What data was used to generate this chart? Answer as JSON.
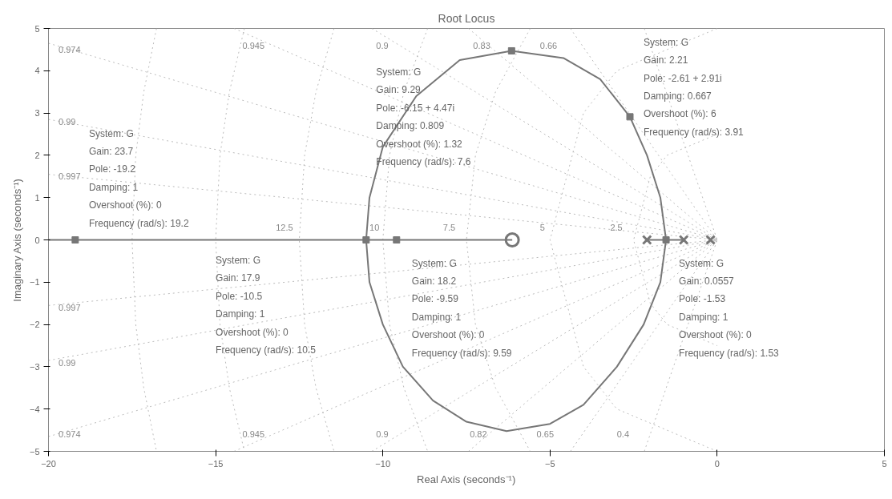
{
  "chart_data": {
    "type": "line",
    "title": "Root Locus",
    "xlabel": "Real Axis (seconds⁻¹)",
    "ylabel": "Imaginary Axis (seconds⁻¹)",
    "xlim": [
      -20,
      5
    ],
    "ylim": [
      -5,
      5
    ],
    "xticks": [
      -20,
      -15,
      -10,
      -5,
      0,
      5
    ],
    "yticks": [
      -5,
      -4,
      -3,
      -2,
      -1,
      0,
      1,
      2,
      3,
      4,
      5
    ],
    "grid": false,
    "series": [
      {
        "type": "line",
        "color": "#bbbbbb",
        "line_style": "dotted",
        "x": [
          -20,
          0
        ],
        "values": [
          4.65,
          0
        ]
      },
      {
        "type": "line",
        "color": "#bbbbbb",
        "line_style": "dotted",
        "x": [
          -20,
          0
        ],
        "values": [
          -4.65,
          0
        ]
      },
      {
        "type": "line",
        "color": "#bbbbbb",
        "line_style": "dotted",
        "x": [
          -14.45,
          0
        ],
        "values": [
          5,
          0
        ]
      },
      {
        "type": "line",
        "color": "#bbbbbb",
        "line_style": "dotted",
        "x": [
          -14.45,
          0
        ],
        "values": [
          -5,
          0
        ]
      },
      {
        "type": "line",
        "color": "#bbbbbb",
        "line_style": "dotted",
        "x": [
          -10.33,
          0
        ],
        "values": [
          5,
          0
        ]
      },
      {
        "type": "line",
        "color": "#bbbbbb",
        "line_style": "dotted",
        "x": [
          -10.33,
          0
        ],
        "values": [
          -5,
          0
        ]
      },
      {
        "type": "line",
        "color": "#bbbbbb",
        "line_style": "dotted",
        "x": [
          -7.44,
          0
        ],
        "values": [
          5,
          0
        ]
      },
      {
        "type": "line",
        "color": "#bbbbbb",
        "line_style": "dotted",
        "x": [
          -7.44,
          0
        ],
        "values": [
          -5,
          0
        ]
      },
      {
        "type": "line",
        "color": "#bbbbbb",
        "line_style": "dotted",
        "x": [
          -4.39,
          0
        ],
        "values": [
          5,
          0
        ]
      },
      {
        "type": "line",
        "color": "#bbbbbb",
        "line_style": "dotted",
        "x": [
          -4.39,
          0
        ],
        "values": [
          -5,
          0
        ]
      },
      {
        "type": "line",
        "color": "#bbbbbb",
        "line_style": "dotted",
        "x": [
          -2.18,
          0
        ],
        "values": [
          5,
          0
        ]
      },
      {
        "type": "line",
        "color": "#bbbbbb",
        "line_style": "dotted",
        "x": [
          -2.18,
          0
        ],
        "values": [
          -5,
          0
        ]
      },
      {
        "type": "line",
        "color": "#bbbbbb",
        "line_style": "dotted",
        "x": [
          -20,
          0
        ],
        "values": [
          2.85,
          0
        ]
      },
      {
        "type": "line",
        "color": "#bbbbbb",
        "line_style": "dotted",
        "x": [
          -20,
          0
        ],
        "values": [
          -2.85,
          0
        ]
      },
      {
        "type": "line",
        "color": "#bbbbbb",
        "line_style": "dotted",
        "x": [
          -20,
          0
        ],
        "values": [
          1.55,
          0
        ]
      },
      {
        "type": "line",
        "color": "#bbbbbb",
        "line_style": "dotted",
        "x": [
          -20,
          0
        ],
        "values": [
          -1.55,
          0
        ]
      },
      {
        "type": "line",
        "color": "#bbbbbb",
        "line_style": "dotted",
        "x": [
          -16.77,
          -17.15,
          -17.39,
          -17.5,
          -17.39,
          -17.15,
          -16.77
        ],
        "values": [
          5,
          3.5,
          2,
          0,
          -2,
          -3.5,
          -5
        ]
      },
      {
        "type": "line",
        "color": "#bbbbbb",
        "line_style": "dotted",
        "x": [
          -14.14,
          -14.59,
          -14.87,
          -15,
          -14.87,
          -14.59,
          -14.14
        ],
        "values": [
          5,
          3.5,
          2,
          0,
          -2,
          -3.5,
          -5
        ]
      },
      {
        "type": "line",
        "color": "#bbbbbb",
        "line_style": "dotted",
        "x": [
          -11.46,
          -12,
          -12.34,
          -12.5,
          -12.34,
          -12,
          -11.46
        ],
        "values": [
          5,
          3.5,
          2,
          0,
          -2,
          -3.5,
          -5
        ]
      },
      {
        "type": "line",
        "color": "#bbbbbb",
        "line_style": "dotted",
        "x": [
          -8.66,
          -9.37,
          -9.8,
          -10,
          -9.8,
          -9.37,
          -8.66
        ],
        "values": [
          5,
          3.5,
          2,
          0,
          -2,
          -3.5,
          -5
        ]
      },
      {
        "type": "line",
        "color": "#bbbbbb",
        "line_style": "dotted",
        "x": [
          -5.59,
          -6.63,
          -7.23,
          -7.5,
          -7.23,
          -6.63,
          -5.59
        ],
        "values": [
          5,
          3.5,
          2,
          0,
          -2,
          -3.5,
          -5
        ]
      },
      {
        "type": "line",
        "color": "#bbbbbb",
        "line_style": "dotted",
        "x": [
          0,
          -3,
          -4,
          -5,
          -4,
          -3,
          0
        ],
        "values": [
          5,
          4,
          3,
          0,
          -3,
          -4,
          -5
        ]
      },
      {
        "type": "line",
        "color": "#bbbbbb",
        "line_style": "dotted",
        "x": [
          0,
          -1.5,
          -2,
          -2.5,
          -2,
          -1.5,
          0
        ],
        "values": [
          2.5,
          2,
          1.5,
          0,
          -1.5,
          -2,
          -2.5
        ]
      },
      {
        "color": "#777777",
        "line_style": "solid",
        "x": [
          -1.0,
          -1.53,
          -1.7,
          -2.1,
          -2.61,
          -3.5,
          -4.6,
          -6.15,
          -7.7,
          -9.0,
          -10.0,
          -10.4,
          -10.5,
          -20
        ],
        "values": [
          0,
          0,
          1.0,
          2.0,
          2.91,
          3.8,
          4.3,
          4.47,
          4.25,
          3.4,
          2.2,
          1.0,
          0,
          0
        ]
      },
      {
        "color": "#777777",
        "line_style": "solid",
        "x": [
          -2.1,
          -1.53,
          -1.7,
          -2.2,
          -3.0,
          -4.0,
          -5.0,
          -6.3,
          -7.5,
          -8.5,
          -9.4,
          -10.0,
          -10.4,
          -10.5,
          -9.59,
          -6.13
        ],
        "values": [
          0,
          0,
          -1.0,
          -2.0,
          -3.0,
          -3.9,
          -4.35,
          -4.52,
          -4.3,
          -3.8,
          -3.0,
          -2.0,
          -1.0,
          0,
          0,
          0
        ]
      },
      {
        "type": "scatter",
        "color": "#777777",
        "marker": "cross",
        "x": [
          -2.1,
          -1.0,
          -0.2
        ],
        "values": [
          0,
          0,
          0
        ]
      },
      {
        "type": "scatter",
        "color": "#777777",
        "marker": "circle",
        "x": [
          -6.13
        ],
        "values": [
          0
        ]
      },
      {
        "type": "scatter",
        "color": "#777777",
        "marker": "square",
        "x": [
          -19.2,
          -6.15,
          -2.61,
          -10.5,
          -9.59,
          -1.53
        ],
        "values": [
          0,
          4.47,
          2.91,
          0,
          0,
          0
        ]
      }
    ],
    "annotations": [
      {
        "text": "System: G\nGain: 23.7\nPole: -19.2\nDamping: 1\nOvershoot (%): 0\nFrequency (rad/s): 19.2",
        "x": -19.2,
        "y": 0
      },
      "System: G\nGain: 9.29\nPole: -6.15 + 4.47i\nDamping: 0.809\nOvershoot (%): 1.32\nFrequency (rad/s): 7.6",
      {
        "text": "System: G\nGain: 2.21\nPole: -2.61 + 2.91i\nDamping: 0.667\nOvershoot (%): 6\nFrequency (rad/s): 3.91",
        "x": -2.61,
        "y": 2.91
      },
      "System: G\nGain: 17.9\nPole: -10.5\nDamping: 1\nOvershoot (%): 0\nFrequency (rad/s): 10.5",
      {
        "text": "System: G\nGain: 18.2\nPole: -9.59\nDamping: 1\nOvershoot (%): 0\nFrequency (rad/s): 9.59",
        "x": -9.59,
        "y": 0
      },
      {
        "text": "System: G\nGain: 0.0557\nPole: -1.53\nDamping: 1\nOvershoot (%): 0\nFrequency (rad/s): 1.53",
        "x": -1.53,
        "y": 0
      },
      "0.974",
      "0.945",
      "0.9",
      "0.83",
      "0.66",
      "0.99",
      "0.997",
      "0.997",
      "0.99",
      "0.974",
      "0.945",
      "0.9",
      "0.82",
      "0.65",
      "0.4",
      "12.5",
      "10",
      "7.5",
      "5",
      "2.5"
    ]
  }
}
